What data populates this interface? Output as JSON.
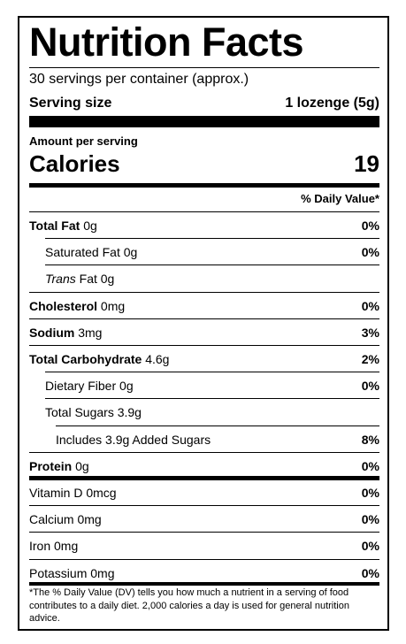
{
  "title": "Nutrition Facts",
  "servings": "30 servings per container (approx.)",
  "serving_size": {
    "label": "Serving size",
    "value": "1 lozenge (5g)"
  },
  "amount_per_serving": "Amount per serving",
  "calories": {
    "label": "Calories",
    "value": "19"
  },
  "daily_value_header": "% Daily Value*",
  "nutrients": [
    {
      "name": "Total Fat",
      "amount": "0g",
      "dv": "0%",
      "bold": true,
      "indent": 0
    },
    {
      "name": "Saturated Fat",
      "amount": "0g",
      "dv": "0%",
      "bold": false,
      "indent": 1
    },
    {
      "name_italic": "Trans",
      "name": "Fat",
      "amount": "0g",
      "bold": false,
      "indent": 1
    },
    {
      "name": "Cholesterol",
      "amount": "0mg",
      "dv": "0%",
      "bold": true,
      "indent": 0
    },
    {
      "name": "Sodium",
      "amount": "3mg",
      "dv": "3%",
      "bold": true,
      "indent": 0
    },
    {
      "name": "Total Carbohydrate",
      "amount": "4.6g",
      "dv": "2%",
      "bold": true,
      "indent": 0
    },
    {
      "name": "Dietary Fiber",
      "amount": "0g",
      "dv": "0%",
      "bold": false,
      "indent": 1
    },
    {
      "name": "Total Sugars",
      "amount": "3.9g",
      "bold": false,
      "indent": 1
    },
    {
      "name": "Includes 3.9g Added Sugars",
      "dv": "8%",
      "bold": false,
      "indent": 2
    },
    {
      "name": "Protein",
      "amount": "0g",
      "dv": "0%",
      "bold": true,
      "indent": 0
    },
    {
      "name": "Vitamin D",
      "amount": "0mcg",
      "dv": "0%",
      "bold": false,
      "indent": 0
    },
    {
      "name": "Calcium",
      "amount": "0mg",
      "dv": "0%",
      "bold": false,
      "indent": 0
    },
    {
      "name": "Iron",
      "amount": "0mg",
      "dv": "0%",
      "bold": false,
      "indent": 0
    },
    {
      "name": "Potassium",
      "amount": "0mg",
      "dv": "0%",
      "bold": false,
      "indent": 0
    }
  ],
  "footnote": "*The % Daily Value (DV) tells you how much a nutrient in a serving of food contributes to a daily diet. 2,000 calories a day is used for general nutrition advice."
}
